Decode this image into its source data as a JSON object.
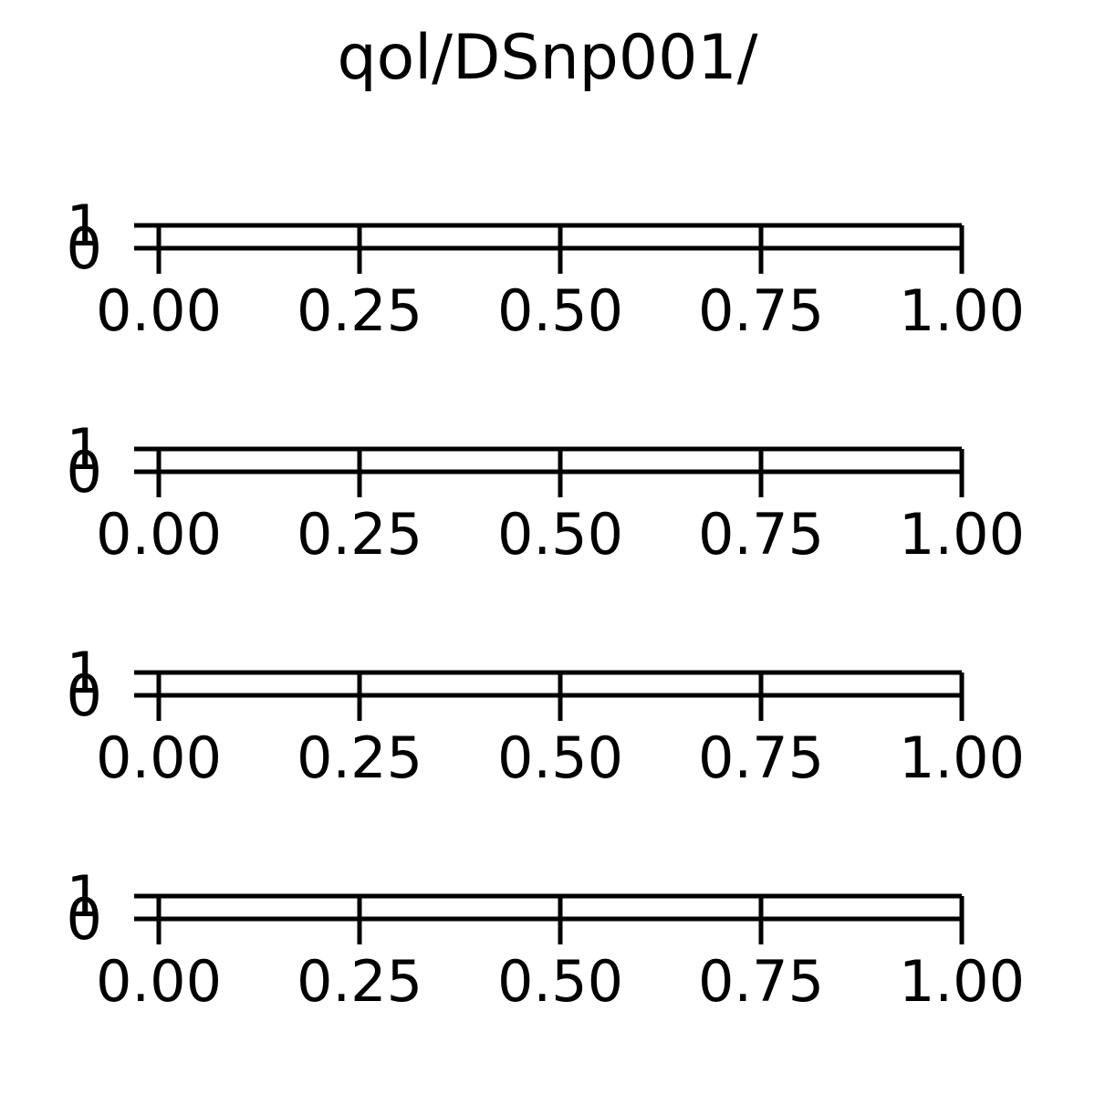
{
  "figure": {
    "title": "qol/DSnp001/"
  },
  "chart_data": [
    {
      "type": "line",
      "title": "",
      "xlabel": "",
      "ylabel": "",
      "xlim": [
        0,
        1
      ],
      "ylim": [
        0,
        1
      ],
      "x_ticks": [
        "0.00",
        "0.25",
        "0.50",
        "0.75",
        "1.00"
      ],
      "y_ticks": [
        "0",
        "1"
      ],
      "grid": false,
      "series": []
    },
    {
      "type": "line",
      "title": "",
      "xlabel": "",
      "ylabel": "",
      "xlim": [
        0,
        1
      ],
      "ylim": [
        0,
        1
      ],
      "x_ticks": [
        "0.00",
        "0.25",
        "0.50",
        "0.75",
        "1.00"
      ],
      "y_ticks": [
        "0",
        "1"
      ],
      "grid": false,
      "series": []
    },
    {
      "type": "line",
      "title": "",
      "xlabel": "",
      "ylabel": "",
      "xlim": [
        0,
        1
      ],
      "ylim": [
        0,
        1
      ],
      "x_ticks": [
        "0.00",
        "0.25",
        "0.50",
        "0.75",
        "1.00"
      ],
      "y_ticks": [
        "0",
        "1"
      ],
      "grid": false,
      "series": []
    },
    {
      "type": "line",
      "title": "",
      "xlabel": "",
      "ylabel": "",
      "xlim": [
        0,
        1
      ],
      "ylim": [
        0,
        1
      ],
      "x_ticks": [
        "0.00",
        "0.25",
        "0.50",
        "0.75",
        "1.00"
      ],
      "y_ticks": [
        "0",
        "1"
      ],
      "grid": false,
      "series": []
    }
  ]
}
